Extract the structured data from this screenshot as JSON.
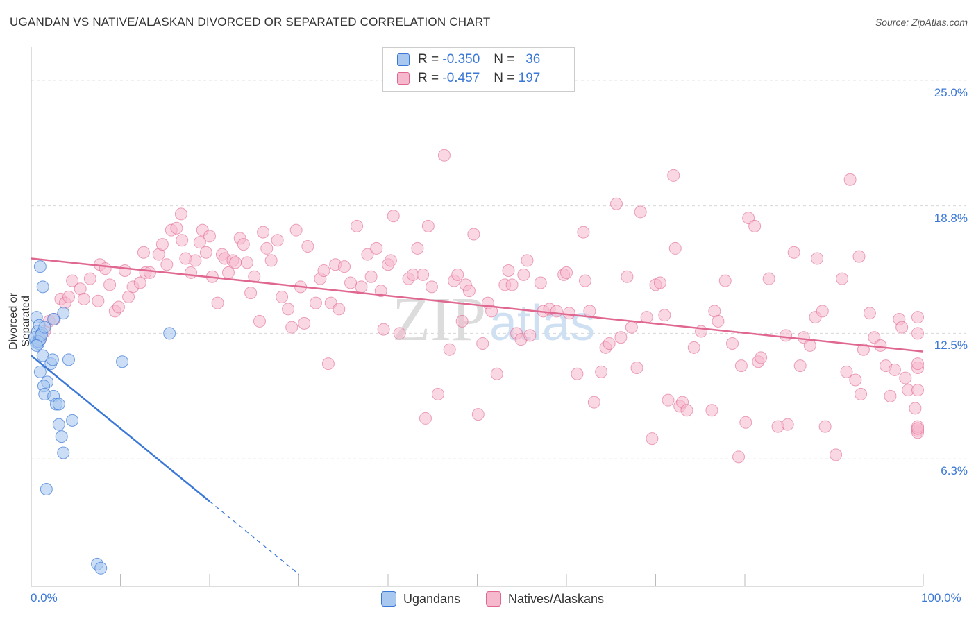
{
  "title": "UGANDAN VS NATIVE/ALASKAN DIVORCED OR SEPARATED CORRELATION CHART",
  "source": "Source: ZipAtlas.com",
  "legend": {
    "row1": {
      "r_label": "R =",
      "r_value": "-0.350",
      "n_label": "N =",
      "n_value": "36"
    },
    "row2": {
      "r_label": "R =",
      "r_value": "-0.457",
      "n_label": "N =",
      "n_value": "197"
    }
  },
  "bottom_legend": {
    "series1": "Ugandans",
    "series2": "Natives/Alaskans"
  },
  "colors": {
    "blue": "#3b78d6",
    "blue_fill": "#a9c8f0",
    "pink": "#e0678f",
    "pink_fill": "#f5b8cc"
  },
  "chart_data": {
    "type": "scatter",
    "title": "UGANDAN VS NATIVE/ALASKAN DIVORCED OR SEPARATED CORRELATION CHART",
    "xlabel": "",
    "ylabel": "Divorced or Separated",
    "xlim": [
      0,
      100
    ],
    "ylim": [
      0,
      26.4
    ],
    "x_tick_labels": [
      "0.0%",
      "100.0%"
    ],
    "y_ticks": [
      6.3,
      12.5,
      18.8,
      25.0
    ],
    "y_tick_labels": [
      "6.3%",
      "12.5%",
      "18.8%",
      "25.0%"
    ],
    "grid": true,
    "series": [
      {
        "name": "Ugandans",
        "r": -0.35,
        "n": 36,
        "trend": {
          "x0": 0.0,
          "y0": 11.4,
          "x1": 20.0,
          "y1": 4.2,
          "dash_to_x": 30.0
        },
        "points": [
          [
            0.5,
            12.1
          ],
          [
            0.7,
            12.6
          ],
          [
            0.4,
            12.3
          ],
          [
            0.8,
            12.0
          ],
          [
            1.0,
            12.2
          ],
          [
            0.6,
            13.3
          ],
          [
            0.9,
            12.9
          ],
          [
            1.2,
            12.5
          ],
          [
            1.0,
            15.8
          ],
          [
            1.3,
            14.8
          ],
          [
            3.6,
            13.5
          ],
          [
            2.5,
            13.2
          ],
          [
            1.3,
            11.4
          ],
          [
            2.2,
            11.0
          ],
          [
            2.4,
            11.2
          ],
          [
            4.2,
            11.2
          ],
          [
            1.0,
            10.6
          ],
          [
            1.8,
            10.1
          ],
          [
            1.4,
            9.9
          ],
          [
            1.5,
            9.5
          ],
          [
            2.5,
            9.4
          ],
          [
            2.8,
            9.0
          ],
          [
            3.1,
            9.0
          ],
          [
            4.6,
            8.2
          ],
          [
            3.1,
            8.0
          ],
          [
            3.4,
            7.4
          ],
          [
            3.6,
            6.6
          ],
          [
            1.7,
            4.8
          ],
          [
            7.4,
            1.1
          ],
          [
            7.8,
            0.9
          ],
          [
            10.2,
            11.1
          ],
          [
            15.5,
            12.5
          ],
          [
            0.8,
            12.1
          ],
          [
            1.1,
            12.4
          ],
          [
            0.6,
            11.9
          ],
          [
            1.5,
            12.8
          ]
        ]
      },
      {
        "name": "Natives/Alaskans",
        "r": -0.457,
        "n": 197,
        "trend": {
          "x0": 0.0,
          "y0": 16.2,
          "x1": 100.0,
          "y1": 11.6
        },
        "points": [
          [
            1.0,
            12.2
          ],
          [
            1.5,
            12.6
          ],
          [
            2.0,
            13.1
          ],
          [
            2.6,
            13.2
          ],
          [
            3.3,
            14.2
          ],
          [
            3.8,
            14.0
          ],
          [
            4.2,
            14.3
          ],
          [
            4.6,
            15.1
          ],
          [
            5.5,
            14.7
          ],
          [
            5.9,
            14.2
          ],
          [
            6.6,
            15.2
          ],
          [
            7.5,
            14.1
          ],
          [
            7.7,
            15.9
          ],
          [
            8.3,
            15.7
          ],
          [
            8.8,
            14.9
          ],
          [
            9.4,
            13.6
          ],
          [
            9.8,
            13.8
          ],
          [
            10.5,
            15.6
          ],
          [
            10.9,
            14.3
          ],
          [
            11.4,
            14.8
          ],
          [
            12.2,
            15.0
          ],
          [
            12.6,
            16.5
          ],
          [
            12.8,
            15.5
          ],
          [
            13.3,
            15.5
          ],
          [
            14.3,
            16.4
          ],
          [
            14.7,
            16.9
          ],
          [
            15.2,
            15.9
          ],
          [
            15.7,
            17.6
          ],
          [
            16.3,
            17.7
          ],
          [
            16.8,
            18.4
          ],
          [
            16.9,
            17.1
          ],
          [
            17.3,
            16.2
          ],
          [
            17.9,
            15.5
          ],
          [
            18.4,
            16.1
          ],
          [
            18.9,
            17.0
          ],
          [
            19.2,
            17.6
          ],
          [
            19.6,
            16.5
          ],
          [
            20.0,
            17.3
          ],
          [
            20.3,
            15.3
          ],
          [
            20.9,
            14.0
          ],
          [
            21.4,
            16.4
          ],
          [
            21.7,
            16.2
          ],
          [
            22.1,
            15.5
          ],
          [
            22.6,
            16.1
          ],
          [
            22.9,
            16.0
          ],
          [
            23.4,
            17.2
          ],
          [
            23.8,
            16.9
          ],
          [
            24.2,
            16.0
          ],
          [
            24.6,
            14.5
          ],
          [
            25.0,
            15.3
          ],
          [
            25.6,
            13.1
          ],
          [
            26.0,
            17.5
          ],
          [
            26.4,
            16.7
          ],
          [
            26.9,
            16.1
          ],
          [
            27.6,
            17.1
          ],
          [
            28.1,
            14.3
          ],
          [
            28.8,
            13.7
          ],
          [
            29.2,
            12.8
          ],
          [
            29.7,
            17.6
          ],
          [
            30.2,
            14.8
          ],
          [
            30.6,
            13.0
          ],
          [
            31.0,
            16.8
          ],
          [
            31.9,
            14.0
          ],
          [
            32.4,
            15.2
          ],
          [
            32.8,
            15.6
          ],
          [
            33.3,
            11.0
          ],
          [
            33.6,
            14.0
          ],
          [
            34.1,
            15.9
          ],
          [
            34.5,
            13.7
          ],
          [
            35.1,
            15.8
          ],
          [
            35.8,
            15.0
          ],
          [
            36.5,
            17.8
          ],
          [
            37.0,
            14.8
          ],
          [
            37.7,
            16.4
          ],
          [
            38.1,
            15.3
          ],
          [
            38.7,
            16.7
          ],
          [
            39.2,
            14.6
          ],
          [
            39.5,
            12.7
          ],
          [
            40.0,
            15.9
          ],
          [
            40.3,
            16.1
          ],
          [
            40.6,
            18.3
          ],
          [
            41.3,
            12.5
          ],
          [
            42.3,
            15.2
          ],
          [
            42.8,
            15.4
          ],
          [
            43.3,
            16.7
          ],
          [
            43.9,
            15.4
          ],
          [
            44.2,
            8.3
          ],
          [
            44.5,
            17.8
          ],
          [
            44.9,
            14.8
          ],
          [
            45.6,
            9.5
          ],
          [
            46.3,
            21.3
          ],
          [
            46.9,
            11.7
          ],
          [
            47.4,
            15.1
          ],
          [
            47.8,
            15.4
          ],
          [
            48.3,
            13.1
          ],
          [
            48.7,
            14.9
          ],
          [
            49.1,
            14.6
          ],
          [
            49.6,
            17.4
          ],
          [
            50.1,
            8.5
          ],
          [
            50.6,
            12.0
          ],
          [
            51.2,
            14.0
          ],
          [
            51.6,
            13.6
          ],
          [
            52.2,
            10.5
          ],
          [
            53.1,
            14.9
          ],
          [
            53.5,
            15.6
          ],
          [
            53.9,
            14.9
          ],
          [
            54.4,
            12.5
          ],
          [
            54.9,
            12.2
          ],
          [
            55.2,
            15.4
          ],
          [
            55.6,
            16.1
          ],
          [
            55.9,
            12.4
          ],
          [
            57.1,
            15.0
          ],
          [
            57.4,
            13.6
          ],
          [
            58.1,
            13.7
          ],
          [
            58.9,
            13.6
          ],
          [
            59.7,
            15.4
          ],
          [
            60.0,
            15.5
          ],
          [
            60.3,
            13.5
          ],
          [
            61.2,
            10.5
          ],
          [
            61.9,
            17.5
          ],
          [
            62.1,
            15.1
          ],
          [
            62.6,
            13.6
          ],
          [
            63.1,
            9.1
          ],
          [
            63.9,
            10.6
          ],
          [
            64.4,
            11.8
          ],
          [
            64.8,
            12.0
          ],
          [
            65.6,
            18.9
          ],
          [
            66.1,
            12.3
          ],
          [
            66.8,
            15.3
          ],
          [
            67.3,
            12.8
          ],
          [
            67.9,
            10.8
          ],
          [
            68.3,
            18.5
          ],
          [
            69.0,
            13.3
          ],
          [
            69.6,
            7.3
          ],
          [
            70.0,
            14.9
          ],
          [
            70.5,
            15.0
          ],
          [
            71.0,
            13.4
          ],
          [
            71.4,
            9.2
          ],
          [
            72.0,
            20.3
          ],
          [
            72.2,
            16.7
          ],
          [
            72.7,
            8.9
          ],
          [
            73.0,
            9.1
          ],
          [
            73.5,
            8.7
          ],
          [
            74.3,
            11.8
          ],
          [
            75.1,
            12.6
          ],
          [
            76.3,
            8.7
          ],
          [
            76.6,
            13.6
          ],
          [
            77.0,
            13.1
          ],
          [
            77.8,
            15.1
          ],
          [
            78.6,
            12.0
          ],
          [
            79.3,
            6.4
          ],
          [
            79.6,
            10.9
          ],
          [
            80.1,
            8.1
          ],
          [
            80.4,
            18.2
          ],
          [
            81.1,
            17.8
          ],
          [
            81.5,
            11.1
          ],
          [
            81.8,
            11.3
          ],
          [
            82.7,
            15.2
          ],
          [
            83.7,
            7.9
          ],
          [
            84.6,
            12.4
          ],
          [
            84.8,
            8.0
          ],
          [
            85.5,
            16.5
          ],
          [
            86.2,
            10.9
          ],
          [
            86.6,
            12.3
          ],
          [
            87.3,
            11.9
          ],
          [
            87.9,
            13.3
          ],
          [
            88.1,
            16.2
          ],
          [
            88.7,
            13.6
          ],
          [
            89.0,
            7.9
          ],
          [
            90.2,
            6.5
          ],
          [
            90.9,
            15.2
          ],
          [
            91.4,
            10.6
          ],
          [
            91.8,
            20.1
          ],
          [
            92.4,
            10.2
          ],
          [
            92.8,
            16.3
          ],
          [
            93.0,
            9.5
          ],
          [
            93.3,
            11.7
          ],
          [
            94.0,
            13.5
          ],
          [
            94.5,
            12.3
          ],
          [
            95.2,
            11.9
          ],
          [
            95.8,
            10.9
          ],
          [
            96.3,
            9.4
          ],
          [
            96.8,
            10.7
          ],
          [
            97.3,
            13.2
          ],
          [
            97.6,
            12.8
          ],
          [
            98.0,
            10.3
          ],
          [
            98.3,
            9.7
          ],
          [
            99.1,
            8.8
          ],
          [
            99.6,
            7.7
          ],
          [
            100.0,
            7.6
          ],
          [
            100.4,
            9.7
          ],
          [
            101.0,
            10.8
          ],
          [
            102.0,
            7.9
          ],
          [
            102.3,
            7.8
          ],
          [
            103.0,
            13.3
          ],
          [
            103.5,
            12.5
          ],
          [
            104.0,
            11.0
          ]
        ]
      }
    ]
  }
}
